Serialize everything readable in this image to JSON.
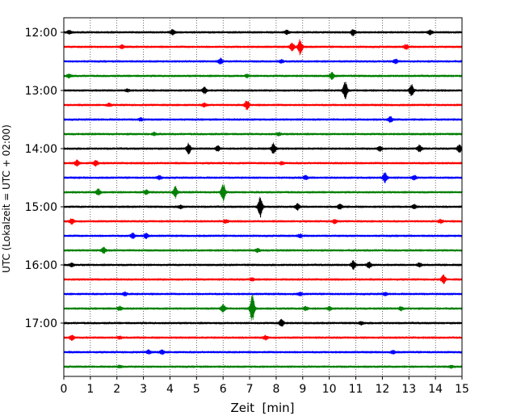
{
  "chart_data": {
    "type": "line",
    "title": "",
    "xlabel": "Zeit  [min]",
    "ylabel": "UTC (Lokalzeit = UTC + 02:00)",
    "xlim": [
      0,
      15
    ],
    "x_ticks": [
      "0",
      "1",
      "2",
      "3",
      "4",
      "5",
      "6",
      "7",
      "8",
      "9",
      "10",
      "11",
      "12",
      "13",
      "14",
      "15"
    ],
    "y_ticks": [
      "12:00",
      "13:00",
      "14:00",
      "15:00",
      "16:00",
      "17:00"
    ],
    "grid": {
      "x": "dotted",
      "y": false
    },
    "colors": [
      "#000000",
      "#ff0000",
      "#0000ff",
      "#008000"
    ],
    "traces": [
      {
        "start": "12:00",
        "color": "#000000",
        "events": [
          [
            0.2,
            0.5
          ],
          [
            4.1,
            0.8
          ],
          [
            10.9,
            0.9
          ],
          [
            13.8,
            0.6
          ],
          [
            8.4,
            0.5
          ]
        ]
      },
      {
        "start": "12:15",
        "color": "#ff0000",
        "events": [
          [
            2.2,
            0.5
          ],
          [
            8.9,
            2.3
          ],
          [
            8.6,
            1.2
          ],
          [
            12.9,
            0.7
          ]
        ]
      },
      {
        "start": "12:30",
        "color": "#0000ff",
        "events": [
          [
            5.9,
            0.8
          ],
          [
            12.5,
            0.5
          ],
          [
            8.2,
            0.4
          ]
        ]
      },
      {
        "start": "12:45",
        "color": "#008000",
        "events": [
          [
            0.2,
            0.5
          ],
          [
            10.1,
            0.9
          ],
          [
            6.9,
            0.4
          ]
        ]
      },
      {
        "start": "13:00",
        "color": "#000000",
        "events": [
          [
            5.3,
            0.9
          ],
          [
            10.6,
            2.6
          ],
          [
            13.1,
            1.7
          ],
          [
            2.4,
            0.4
          ]
        ]
      },
      {
        "start": "13:15",
        "color": "#ff0000",
        "events": [
          [
            6.9,
            1.4
          ],
          [
            5.3,
            0.5
          ],
          [
            1.7,
            0.4
          ]
        ]
      },
      {
        "start": "13:30",
        "color": "#0000ff",
        "events": [
          [
            12.3,
            0.8
          ],
          [
            2.9,
            0.4
          ]
        ]
      },
      {
        "start": "13:45",
        "color": "#008000",
        "events": [
          [
            8.1,
            0.4
          ],
          [
            3.4,
            0.4
          ]
        ]
      },
      {
        "start": "14:00",
        "color": "#000000",
        "events": [
          [
            4.7,
            1.6
          ],
          [
            7.9,
            1.7
          ],
          [
            5.8,
            0.8
          ],
          [
            11.9,
            0.7
          ],
          [
            13.4,
            1.0
          ],
          [
            14.9,
            1.2
          ]
        ]
      },
      {
        "start": "14:15",
        "color": "#ff0000",
        "events": [
          [
            0.5,
            0.9
          ],
          [
            1.2,
            0.8
          ],
          [
            8.2,
            0.4
          ]
        ]
      },
      {
        "start": "14:30",
        "color": "#0000ff",
        "events": [
          [
            12.1,
            1.5
          ],
          [
            9.1,
            0.6
          ],
          [
            13.2,
            0.6
          ],
          [
            3.6,
            0.5
          ]
        ]
      },
      {
        "start": "14:45",
        "color": "#008000",
        "events": [
          [
            1.3,
            0.9
          ],
          [
            4.2,
            1.7
          ],
          [
            6.0,
            2.6
          ],
          [
            3.1,
            0.6
          ]
        ]
      },
      {
        "start": "15:00",
        "color": "#000000",
        "events": [
          [
            7.4,
            3.1
          ],
          [
            8.8,
            0.9
          ],
          [
            10.4,
            0.7
          ],
          [
            4.4,
            0.5
          ],
          [
            13.2,
            0.6
          ]
        ]
      },
      {
        "start": "15:15",
        "color": "#ff0000",
        "events": [
          [
            0.3,
            0.8
          ],
          [
            10.2,
            0.6
          ],
          [
            14.2,
            0.5
          ],
          [
            6.1,
            0.5
          ]
        ]
      },
      {
        "start": "15:30",
        "color": "#0000ff",
        "events": [
          [
            2.6,
            0.8
          ],
          [
            3.1,
            0.7
          ],
          [
            8.9,
            0.5
          ]
        ]
      },
      {
        "start": "15:45",
        "color": "#008000",
        "events": [
          [
            1.5,
            0.9
          ],
          [
            7.3,
            0.5
          ]
        ]
      },
      {
        "start": "16:00",
        "color": "#000000",
        "events": [
          [
            10.9,
            1.2
          ],
          [
            11.5,
            0.9
          ],
          [
            13.4,
            0.6
          ],
          [
            0.3,
            0.5
          ]
        ]
      },
      {
        "start": "16:15",
        "color": "#ff0000",
        "events": [
          [
            14.3,
            1.3
          ],
          [
            7.1,
            0.4
          ]
        ]
      },
      {
        "start": "16:30",
        "color": "#0000ff",
        "events": [
          [
            2.3,
            0.5
          ],
          [
            12.1,
            0.4
          ],
          [
            8.9,
            0.4
          ]
        ]
      },
      {
        "start": "16:45",
        "color": "#008000",
        "events": [
          [
            7.1,
            4.2
          ],
          [
            6.0,
            1.2
          ],
          [
            2.1,
            0.6
          ],
          [
            10.0,
            0.5
          ],
          [
            9.1,
            0.5
          ],
          [
            12.7,
            0.5
          ]
        ]
      },
      {
        "start": "17:00",
        "color": "#000000",
        "events": [
          [
            8.2,
            1.2
          ],
          [
            11.2,
            0.4
          ]
        ]
      },
      {
        "start": "17:15",
        "color": "#ff0000",
        "events": [
          [
            0.3,
            0.7
          ],
          [
            7.6,
            0.6
          ],
          [
            2.1,
            0.4
          ]
        ]
      },
      {
        "start": "17:30",
        "color": "#0000ff",
        "events": [
          [
            3.2,
            0.6
          ],
          [
            3.7,
            0.6
          ],
          [
            12.4,
            0.4
          ]
        ]
      },
      {
        "start": "17:45",
        "color": "#008000",
        "events": [
          [
            2.1,
            0.3
          ],
          [
            14.6,
            0.3
          ]
        ]
      }
    ]
  }
}
